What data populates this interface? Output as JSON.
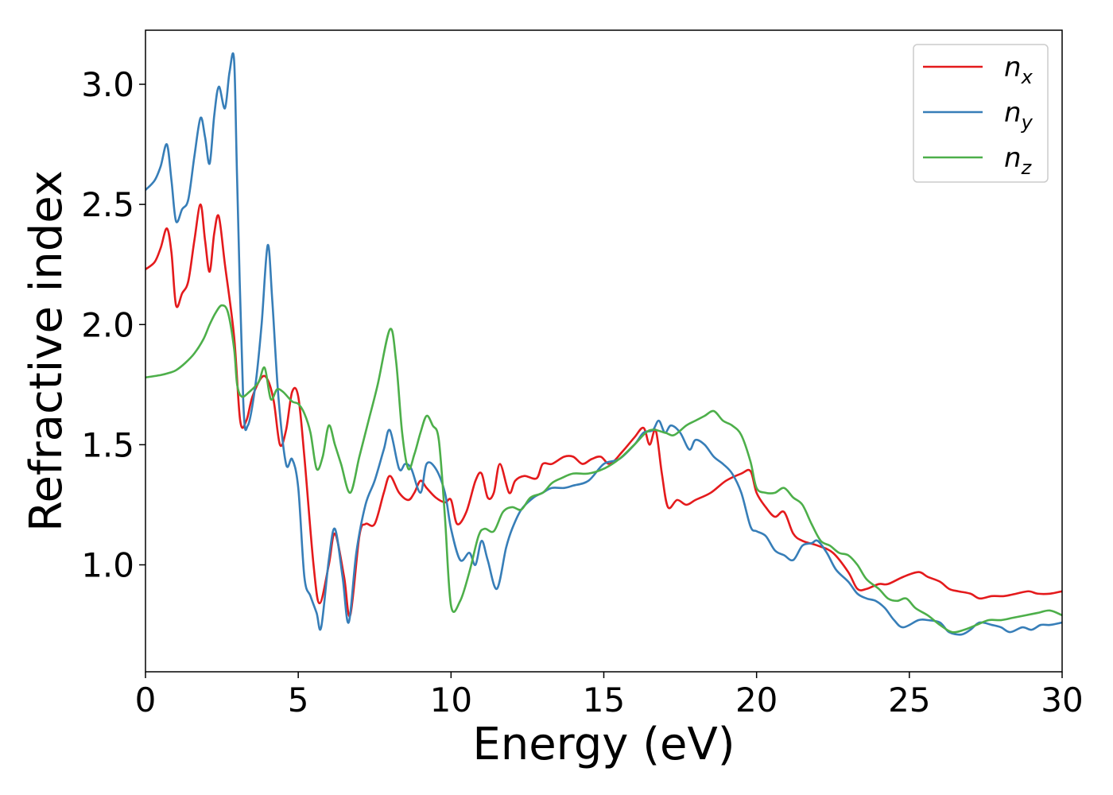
{
  "chart_data": {
    "type": "line",
    "title": "",
    "xlabel": "Energy (eV)",
    "ylabel": "Refractive index",
    "xlim": [
      0,
      30
    ],
    "ylim": [
      0.555,
      3.225
    ],
    "grid": false,
    "legend_position": "top-right",
    "x_ticks": [
      {
        "value": 0,
        "label": "0"
      },
      {
        "value": 5,
        "label": "5"
      },
      {
        "value": 10,
        "label": "10"
      },
      {
        "value": 15,
        "label": "15"
      },
      {
        "value": 20,
        "label": "20"
      },
      {
        "value": 25,
        "label": "25"
      },
      {
        "value": 30,
        "label": "30"
      }
    ],
    "y_ticks": [
      {
        "value": 1.0,
        "label": "1.0"
      },
      {
        "value": 1.5,
        "label": "1.5"
      },
      {
        "value": 2.0,
        "label": "2.0"
      },
      {
        "value": 2.5,
        "label": "2.5"
      },
      {
        "value": 3.0,
        "label": "3.0"
      }
    ],
    "series": [
      {
        "name": "n_x",
        "base": "n",
        "sub": "x",
        "color": "#e41a1c",
        "x": [
          0,
          0.3,
          0.5,
          0.7,
          0.85,
          1.0,
          1.2,
          1.4,
          1.6,
          1.8,
          1.95,
          2.1,
          2.25,
          2.4,
          2.6,
          2.9,
          3.1,
          3.3,
          3.5,
          3.8,
          4.0,
          4.2,
          4.4,
          4.6,
          4.8,
          5.0,
          5.2,
          5.5,
          5.7,
          6.0,
          6.2,
          6.5,
          6.7,
          7.0,
          7.2,
          7.5,
          7.8,
          8.0,
          8.3,
          8.6,
          8.8,
          9.0,
          9.2,
          9.5,
          9.8,
          10.0,
          10.2,
          10.5,
          10.8,
          11.0,
          11.2,
          11.4,
          11.6,
          11.9,
          12.1,
          12.4,
          12.8,
          13.0,
          13.3,
          13.7,
          14.0,
          14.3,
          14.6,
          14.9,
          15.2,
          15.6,
          16.0,
          16.3,
          16.5,
          16.7,
          16.9,
          17.1,
          17.4,
          17.7,
          18.0,
          18.5,
          19.0,
          19.5,
          19.8,
          20.0,
          20.3,
          20.6,
          20.9,
          21.2,
          21.5,
          22.0,
          22.5,
          23.0,
          23.3,
          23.6,
          24.0,
          24.3,
          24.8,
          25.3,
          25.6,
          26.0,
          26.3,
          26.6,
          27.0,
          27.3,
          27.7,
          28.1,
          28.5,
          28.9,
          29.2,
          29.6,
          30.0
        ],
        "y": [
          2.23,
          2.26,
          2.32,
          2.4,
          2.3,
          2.08,
          2.13,
          2.18,
          2.35,
          2.5,
          2.35,
          2.22,
          2.38,
          2.45,
          2.25,
          1.95,
          1.6,
          1.6,
          1.7,
          1.78,
          1.77,
          1.68,
          1.5,
          1.56,
          1.72,
          1.7,
          1.45,
          1.0,
          0.84,
          1.0,
          1.13,
          0.95,
          0.79,
          1.12,
          1.17,
          1.17,
          1.3,
          1.37,
          1.3,
          1.27,
          1.3,
          1.35,
          1.32,
          1.28,
          1.26,
          1.27,
          1.17,
          1.22,
          1.35,
          1.38,
          1.28,
          1.3,
          1.42,
          1.3,
          1.35,
          1.37,
          1.36,
          1.42,
          1.42,
          1.45,
          1.45,
          1.42,
          1.44,
          1.45,
          1.42,
          1.47,
          1.53,
          1.57,
          1.5,
          1.56,
          1.38,
          1.24,
          1.27,
          1.25,
          1.27,
          1.3,
          1.35,
          1.38,
          1.39,
          1.3,
          1.24,
          1.2,
          1.22,
          1.13,
          1.1,
          1.08,
          1.05,
          0.97,
          0.9,
          0.9,
          0.92,
          0.92,
          0.95,
          0.97,
          0.95,
          0.93,
          0.9,
          0.89,
          0.88,
          0.86,
          0.87,
          0.87,
          0.88,
          0.89,
          0.88,
          0.88,
          0.89
        ]
      },
      {
        "name": "n_y",
        "base": "n",
        "sub": "y",
        "color": "#377eb8",
        "x": [
          0,
          0.3,
          0.5,
          0.7,
          0.85,
          1.0,
          1.2,
          1.4,
          1.6,
          1.8,
          1.95,
          2.1,
          2.25,
          2.4,
          2.6,
          2.75,
          2.9,
          3.0,
          3.2,
          3.35,
          3.6,
          3.8,
          4.0,
          4.15,
          4.35,
          4.6,
          4.8,
          5.0,
          5.2,
          5.4,
          5.6,
          5.75,
          6.0,
          6.2,
          6.45,
          6.65,
          6.9,
          7.2,
          7.5,
          7.8,
          8.0,
          8.3,
          8.5,
          8.7,
          9.0,
          9.2,
          9.5,
          9.8,
          10.0,
          10.3,
          10.6,
          10.8,
          11.0,
          11.2,
          11.5,
          11.8,
          12.0,
          12.3,
          12.7,
          13.0,
          13.3,
          13.7,
          14.0,
          14.5,
          15.0,
          15.5,
          16.0,
          16.3,
          16.6,
          16.8,
          17.0,
          17.2,
          17.5,
          17.8,
          18.0,
          18.3,
          18.6,
          18.9,
          19.2,
          19.5,
          19.8,
          20.0,
          20.3,
          20.6,
          20.9,
          21.2,
          21.5,
          21.8,
          22.0,
          22.3,
          22.6,
          23.0,
          23.3,
          23.6,
          23.9,
          24.2,
          24.5,
          24.8,
          25.3,
          25.6,
          26.0,
          26.3,
          26.7,
          27.0,
          27.3,
          27.7,
          28.0,
          28.3,
          28.7,
          29.0,
          29.3,
          29.6,
          30.0
        ],
        "y": [
          2.56,
          2.6,
          2.66,
          2.75,
          2.6,
          2.43,
          2.48,
          2.52,
          2.7,
          2.86,
          2.78,
          2.67,
          2.87,
          2.99,
          2.9,
          3.05,
          3.1,
          2.6,
          1.68,
          1.58,
          1.75,
          2.0,
          2.33,
          2.1,
          1.7,
          1.42,
          1.44,
          1.32,
          0.95,
          0.87,
          0.8,
          0.74,
          1.02,
          1.15,
          0.95,
          0.76,
          1.05,
          1.25,
          1.35,
          1.48,
          1.56,
          1.4,
          1.42,
          1.4,
          1.3,
          1.42,
          1.4,
          1.3,
          1.15,
          1.02,
          1.05,
          1.0,
          1.1,
          1.02,
          0.9,
          1.07,
          1.15,
          1.23,
          1.28,
          1.3,
          1.32,
          1.32,
          1.33,
          1.35,
          1.42,
          1.44,
          1.5,
          1.55,
          1.56,
          1.6,
          1.55,
          1.58,
          1.55,
          1.48,
          1.52,
          1.5,
          1.45,
          1.42,
          1.38,
          1.3,
          1.16,
          1.14,
          1.12,
          1.06,
          1.04,
          1.02,
          1.08,
          1.09,
          1.1,
          1.05,
          0.98,
          0.93,
          0.88,
          0.86,
          0.85,
          0.82,
          0.77,
          0.74,
          0.77,
          0.77,
          0.76,
          0.72,
          0.71,
          0.73,
          0.76,
          0.75,
          0.74,
          0.72,
          0.74,
          0.73,
          0.75,
          0.75,
          0.76
        ]
      },
      {
        "name": "n_z",
        "base": "n",
        "sub": "z",
        "color": "#4daf4a",
        "x": [
          0,
          0.5,
          0.8,
          1.0,
          1.3,
          1.6,
          1.9,
          2.1,
          2.3,
          2.5,
          2.7,
          2.9,
          3.0,
          3.15,
          3.4,
          3.7,
          3.9,
          4.1,
          4.3,
          4.5,
          4.8,
          5.0,
          5.2,
          5.4,
          5.6,
          5.8,
          6.0,
          6.2,
          6.4,
          6.7,
          7.0,
          7.3,
          7.6,
          8.0,
          8.2,
          8.4,
          8.6,
          8.8,
          9.0,
          9.2,
          9.4,
          9.6,
          9.8,
          10.0,
          10.3,
          10.6,
          10.9,
          11.1,
          11.4,
          11.7,
          12.0,
          12.3,
          12.6,
          13.0,
          13.3,
          13.6,
          14.0,
          14.5,
          15.0,
          15.5,
          16.0,
          16.5,
          17.0,
          17.3,
          17.7,
          18.0,
          18.3,
          18.6,
          18.9,
          19.2,
          19.5,
          19.8,
          20.0,
          20.3,
          20.6,
          20.9,
          21.2,
          21.5,
          21.8,
          22.1,
          22.4,
          22.7,
          23.0,
          23.3,
          23.6,
          24.0,
          24.3,
          24.6,
          24.9,
          25.2,
          25.6,
          26.0,
          26.4,
          26.8,
          27.2,
          27.6,
          28.0,
          28.4,
          28.8,
          29.2,
          29.6,
          30.0
        ],
        "y": [
          1.78,
          1.79,
          1.8,
          1.81,
          1.84,
          1.88,
          1.94,
          2.0,
          2.05,
          2.08,
          2.05,
          1.9,
          1.75,
          1.7,
          1.72,
          1.76,
          1.82,
          1.69,
          1.73,
          1.72,
          1.68,
          1.67,
          1.63,
          1.55,
          1.4,
          1.45,
          1.58,
          1.5,
          1.42,
          1.3,
          1.45,
          1.6,
          1.75,
          1.98,
          1.85,
          1.55,
          1.4,
          1.46,
          1.55,
          1.62,
          1.58,
          1.52,
          1.2,
          0.83,
          0.85,
          0.97,
          1.12,
          1.15,
          1.14,
          1.22,
          1.24,
          1.23,
          1.28,
          1.3,
          1.34,
          1.36,
          1.38,
          1.38,
          1.4,
          1.44,
          1.5,
          1.56,
          1.55,
          1.54,
          1.58,
          1.6,
          1.62,
          1.64,
          1.6,
          1.58,
          1.54,
          1.43,
          1.32,
          1.3,
          1.3,
          1.32,
          1.28,
          1.25,
          1.17,
          1.1,
          1.08,
          1.05,
          1.04,
          1.0,
          0.94,
          0.9,
          0.86,
          0.85,
          0.86,
          0.82,
          0.79,
          0.75,
          0.72,
          0.73,
          0.75,
          0.77,
          0.77,
          0.78,
          0.79,
          0.8,
          0.81,
          0.79
        ]
      }
    ]
  }
}
